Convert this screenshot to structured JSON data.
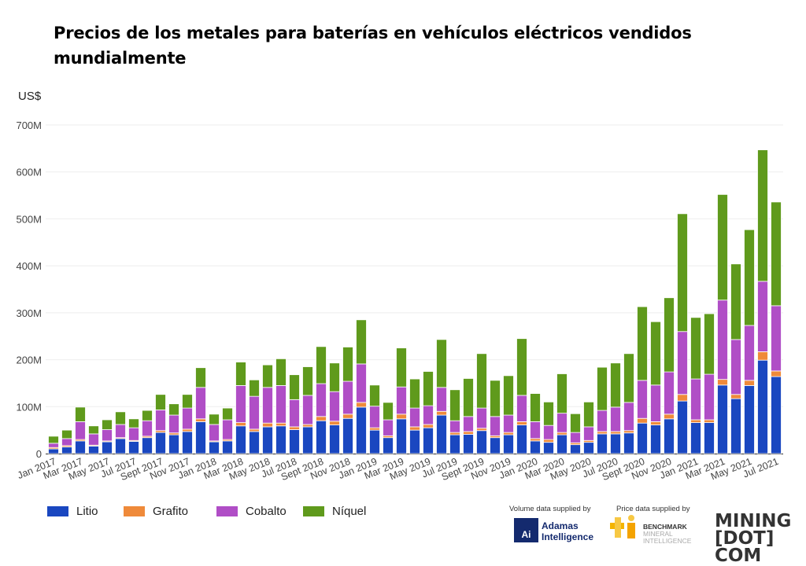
{
  "chart_data": {
    "type": "bar",
    "stacked": true,
    "title": "Precios de los metales para baterías en vehículos eléctricos vendidos mundialmente",
    "ylabel": "US$",
    "xlabel": "",
    "ylim": [
      0,
      700
    ],
    "yticks": [
      "0",
      "100M",
      "200M",
      "300M",
      "400M",
      "500M",
      "600M",
      "700M"
    ],
    "grid": true,
    "legend_position": "bottom-left",
    "categories": [
      "Jan 2017",
      "Feb 2017",
      "Mar 2017",
      "Apr 2017",
      "May 2017",
      "Jun 2017",
      "Jul 2017",
      "Aug 2017",
      "Sept 2017",
      "Oct 2017",
      "Nov 2017",
      "Dec 2017",
      "Jan 2018",
      "Feb 2018",
      "Mar 2018",
      "Apr 2018",
      "May 2018",
      "Jun 2018",
      "Jul 2018",
      "Aug 2018",
      "Sept 2018",
      "Oct 2018",
      "Nov 2018",
      "Dec 2018",
      "Jan 2019",
      "Feb 2019",
      "Mar 2019",
      "Apr 2019",
      "May 2019",
      "Jun 2019",
      "Jul 2019",
      "Aug 2019",
      "Sept 2019",
      "Oct 2019",
      "Nov 2019",
      "Dec 2019",
      "Jan 2020",
      "Feb 2020",
      "Mar 2020",
      "Apr 2020",
      "May 2020",
      "Jun 2020",
      "Jul 2020",
      "Aug 2020",
      "Sept 2020",
      "Oct 2020",
      "Nov 2020",
      "Dec 2020",
      "Jan 2021",
      "Feb 2021",
      "Mar 2021",
      "Apr 2021",
      "May 2021",
      "Jun 2021",
      "Jul 2021"
    ],
    "xtick_labels": [
      "Jan 2017",
      "Mar 2017",
      "May 2017",
      "Jul 2017",
      "Sept 2017",
      "Nov 2017",
      "Jan 2018",
      "Mar 2018",
      "May 2018",
      "Jul 2018",
      "Sept 2018",
      "Nov 2018",
      "Jan 2019",
      "Mar 2019",
      "May 2019",
      "Jul 2019",
      "Sept 2019",
      "Nov 2019",
      "Jan 2020",
      "Mar 2020",
      "May 2020",
      "Jul 2020",
      "Sept 2020",
      "Nov 2020",
      "Jan 2021",
      "Mar 2021",
      "May 2021",
      "Jul 2021"
    ],
    "unit": "millones US$",
    "series": [
      {
        "name": "Litio",
        "color": "#1a47c0",
        "values": [
          10,
          14,
          27,
          16,
          25,
          32,
          26,
          34,
          45,
          40,
          47,
          68,
          25,
          27,
          59,
          47,
          57,
          59,
          51,
          57,
          70,
          61,
          75,
          99,
          50,
          34,
          74,
          50,
          55,
          82,
          40,
          41,
          49,
          34,
          40,
          61,
          27,
          24,
          40,
          19,
          24,
          42,
          42,
          44,
          65,
          61,
          74,
          112,
          66,
          66,
          146,
          117,
          145,
          199,
          164
        ]
      },
      {
        "name": "Grafito",
        "color": "#ef8a3a",
        "values": [
          3,
          3,
          3,
          2,
          2,
          2,
          2,
          3,
          4,
          4,
          5,
          6,
          2,
          3,
          7,
          5,
          8,
          6,
          6,
          5,
          9,
          8,
          9,
          10,
          5,
          4,
          10,
          7,
          7,
          8,
          5,
          6,
          5,
          4,
          5,
          7,
          5,
          6,
          5,
          4,
          4,
          5,
          5,
          5,
          10,
          7,
          10,
          14,
          6,
          6,
          12,
          9,
          11,
          18,
          12
        ]
      },
      {
        "name": "Cobalto",
        "color": "#b04ec6",
        "values": [
          9,
          15,
          38,
          24,
          24,
          28,
          27,
          33,
          44,
          38,
          45,
          67,
          35,
          42,
          79,
          70,
          76,
          80,
          58,
          62,
          70,
          63,
          70,
          82,
          46,
          34,
          58,
          40,
          40,
          51,
          25,
          32,
          43,
          41,
          37,
          56,
          36,
          30,
          41,
          22,
          29,
          45,
          52,
          60,
          81,
          78,
          90,
          134,
          87,
          97,
          169,
          117,
          117,
          150,
          139
        ]
      },
      {
        "name": "Níquel",
        "color": "#5f9a1c",
        "values": [
          15,
          18,
          31,
          17,
          21,
          27,
          19,
          22,
          33,
          24,
          29,
          42,
          22,
          25,
          50,
          35,
          48,
          57,
          53,
          61,
          79,
          61,
          73,
          94,
          45,
          37,
          83,
          62,
          73,
          102,
          66,
          81,
          116,
          77,
          84,
          121,
          60,
          50,
          84,
          40,
          53,
          92,
          94,
          104,
          157,
          135,
          158,
          251,
          131,
          129,
          225,
          161,
          204,
          280,
          221
        ]
      }
    ]
  },
  "credits": {
    "volume": "Volume data supplied by",
    "price": "Price data supplied by",
    "adamas_logo": "Ai",
    "adamas_name": "Adamas Intelligence",
    "benchmark_name": "BENCHMARK",
    "benchmark_sub": "MINERAL INTELLIGENCE",
    "mining_logo": "MINING [DOT] COM"
  }
}
